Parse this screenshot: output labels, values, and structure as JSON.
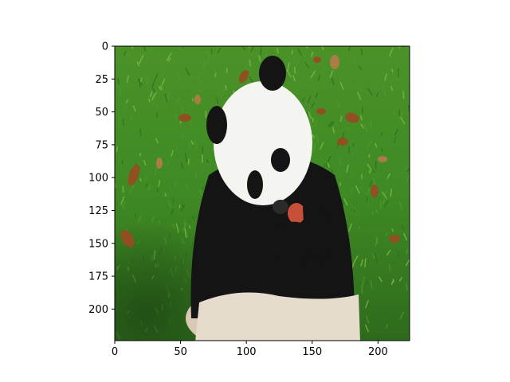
{
  "figure": {
    "background": "#ffffff",
    "axes_color": "#000000"
  },
  "image": {
    "subject": "giant panda sitting on grass eating fruit",
    "palette": {
      "grass_dark": "#2f6b1e",
      "grass_mid": "#4f9a2c",
      "grass_light": "#86bf4a",
      "fur_white": "#f4f4f0",
      "fur_black": "#141414",
      "leaf_brown": "#9a4a22",
      "fruit_red": "#c8503a"
    }
  },
  "axes": {
    "x": {
      "min": 0,
      "max": 224,
      "ticks": [
        0,
        50,
        100,
        150,
        200
      ],
      "tick_labels": [
        "0",
        "50",
        "100",
        "150",
        "200"
      ]
    },
    "y": {
      "min": 0,
      "max": 224,
      "inverted": true,
      "ticks": [
        0,
        25,
        50,
        75,
        100,
        125,
        150,
        175,
        200
      ],
      "tick_labels": [
        "0",
        "25",
        "50",
        "75",
        "100",
        "125",
        "150",
        "175",
        "200"
      ]
    }
  }
}
